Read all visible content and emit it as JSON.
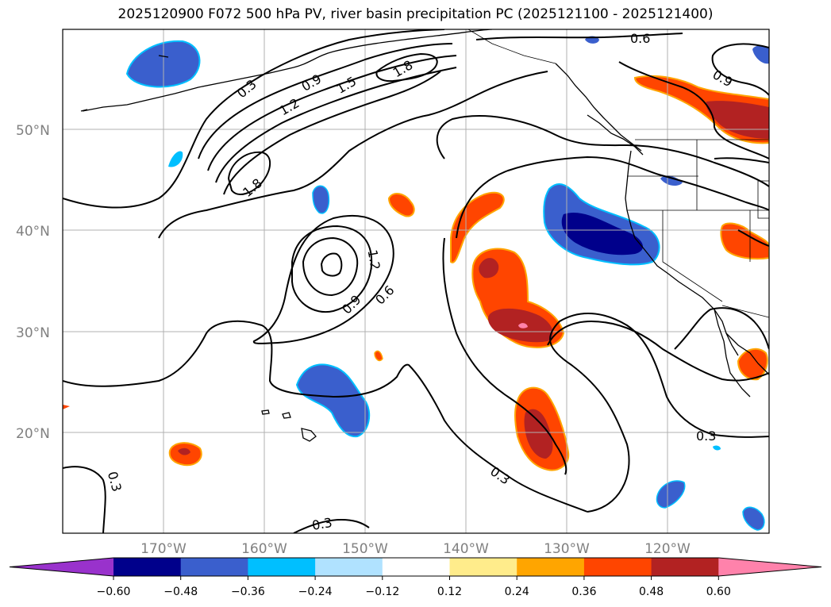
{
  "title": "2025120900 F072 500 hPa PV, river basin precipitation PC (2025121100 - 2025121400)",
  "map": {
    "lon_labels": [
      "170°W",
      "160°W",
      "150°W",
      "140°W",
      "130°W",
      "120°W"
    ],
    "lat_labels": [
      "50°N",
      "40°N",
      "30°N",
      "20°N"
    ]
  },
  "pv_contour_labels": [
    "0.6",
    "0.3",
    "0.9",
    "1.2",
    "1.5",
    "1.8",
    "1.8",
    "1.2",
    "0.9",
    "0.6",
    "0.9",
    "0.3",
    "0.3",
    "0.3",
    "0.3"
  ],
  "colorbar": {
    "colors": [
      "#9932CC",
      "#00008B",
      "#3A5FCD",
      "#00BFFF",
      "#B0E2FF",
      "#FFFFFF",
      "#FFEC8B",
      "#FFA500",
      "#FF4500",
      "#B22222",
      "#FF82AB"
    ],
    "labels": [
      "−0.60",
      "−0.48",
      "−0.36",
      "−0.24",
      "−0.12",
      "0.12",
      "0.24",
      "0.36",
      "0.48",
      "0.60"
    ]
  },
  "colors": {
    "negative_strong": "#00008B",
    "negative": "#3A5FCD",
    "negative_light": "#00BFFF",
    "positive_light": "#FFA500",
    "positive": "#FF4500",
    "positive_strong": "#B22222",
    "positive_max": "#FF82AB"
  }
}
